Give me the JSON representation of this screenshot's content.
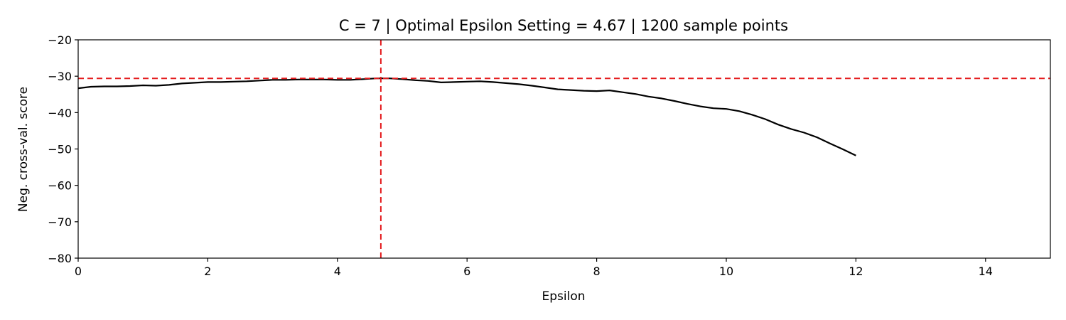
{
  "chart_data": {
    "type": "line",
    "title": "C = 7 | Optimal Epsilon Setting = 4.67 | 1200 sample points",
    "xlabel": "Epsilon",
    "ylabel": "Neg. cross-val. score",
    "xlim": [
      0,
      15
    ],
    "ylim": [
      -80,
      -20
    ],
    "xticks": [
      0,
      2,
      4,
      6,
      8,
      10,
      12,
      14
    ],
    "yticks": [
      -80,
      -70,
      -60,
      -50,
      -40,
      -30,
      -20
    ],
    "xtick_labels": [
      "0",
      "2",
      "4",
      "6",
      "8",
      "10",
      "12",
      "14"
    ],
    "ytick_labels": [
      "−80",
      "−70",
      "−60",
      "−50",
      "−40",
      "−30",
      "−20"
    ],
    "grid": false,
    "series": [
      {
        "color": "#000000",
        "x": [
          0,
          0.2,
          0.4,
          0.6,
          0.8,
          1.0,
          1.2,
          1.4,
          1.6,
          1.8,
          2.0,
          2.2,
          2.4,
          2.6,
          2.8,
          3.0,
          3.2,
          3.4,
          3.6,
          3.8,
          4.0,
          4.2,
          4.4,
          4.6,
          4.67,
          4.8,
          5.0,
          5.2,
          5.4,
          5.6,
          5.8,
          6.0,
          6.2,
          6.4,
          6.6,
          6.8,
          7.0,
          7.2,
          7.4,
          7.6,
          7.8,
          8.0,
          8.2,
          8.4,
          8.6,
          8.8,
          9.0,
          9.2,
          9.4,
          9.6,
          9.8,
          10.0,
          10.2,
          10.4,
          10.6,
          10.8,
          11.0,
          11.2,
          11.4,
          11.6,
          11.8,
          12.0
        ],
        "y": [
          -33.3,
          -32.9,
          -32.8,
          -32.8,
          -32.7,
          -32.5,
          -32.6,
          -32.4,
          -32.0,
          -31.8,
          -31.6,
          -31.6,
          -31.5,
          -31.4,
          -31.2,
          -31.0,
          -31.0,
          -30.9,
          -30.9,
          -30.9,
          -31.0,
          -31.0,
          -30.8,
          -30.6,
          -30.6,
          -30.6,
          -30.8,
          -31.1,
          -31.3,
          -31.7,
          -31.6,
          -31.5,
          -31.4,
          -31.6,
          -31.9,
          -32.2,
          -32.6,
          -33.1,
          -33.6,
          -33.8,
          -34.0,
          -34.1,
          -33.9,
          -34.4,
          -34.9,
          -35.6,
          -36.1,
          -36.8,
          -37.6,
          -38.3,
          -38.8,
          -39.0,
          -39.6,
          -40.6,
          -41.8,
          -43.3,
          -44.5,
          -45.5,
          -46.8,
          -48.5,
          -50.1,
          -51.8
        ]
      }
    ],
    "ref_lines": {
      "vertical_x": 4.67,
      "horizontal_y": -30.6,
      "color": "#e41a1c",
      "style": "dashed"
    }
  }
}
